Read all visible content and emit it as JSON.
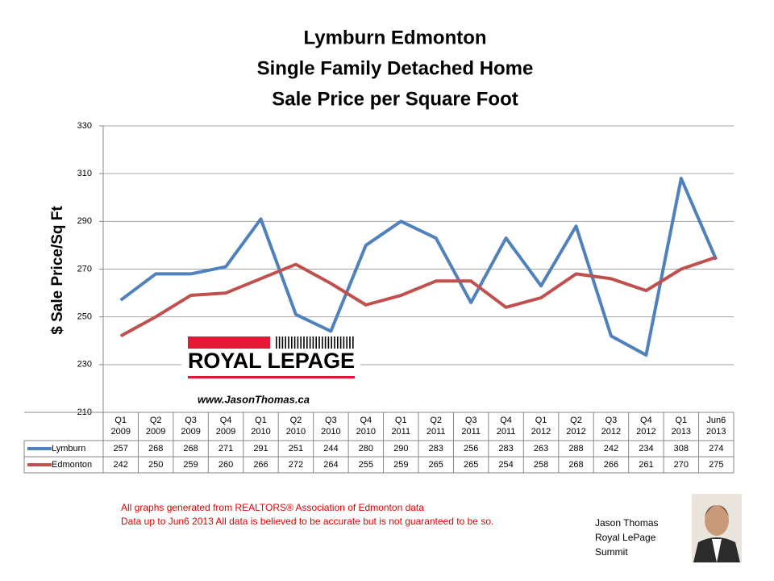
{
  "chart_data": {
    "type": "line",
    "title": [
      "Lymburn Edmonton",
      "Single Family Detached Home",
      "Sale Price per Square Foot"
    ],
    "y_label": "$ Sale Price/Sq Ft",
    "categories": [
      "Q1 2009",
      "Q2 2009",
      "Q3 2009",
      "Q4 2009",
      "Q1 2010",
      "Q2 2010",
      "Q3 2010",
      "Q4 2010",
      "Q1 2011",
      "Q2 2011",
      "Q3 2011",
      "Q4 2011",
      "Q1 2012",
      "Q2 2012",
      "Q3 2012",
      "Q4 2012",
      "Q1 2013",
      "Jun6 2013"
    ],
    "series": [
      {
        "name": "Lymburn",
        "color": "#4f81bd",
        "values": [
          257,
          268,
          268,
          271,
          291,
          251,
          244,
          280,
          290,
          283,
          256,
          283,
          263,
          288,
          242,
          234,
          308,
          274
        ]
      },
      {
        "name": "Edmonton",
        "color": "#c0504d",
        "values": [
          242,
          250,
          259,
          260,
          266,
          272,
          264,
          255,
          259,
          265,
          265,
          254,
          258,
          268,
          266,
          261,
          270,
          275
        ]
      }
    ],
    "ylim": [
      210,
      330
    ],
    "yticks": [
      210,
      230,
      250,
      270,
      290,
      310,
      330
    ],
    "grid": true
  },
  "logo": {
    "brand": "ROYAL LEPAGE",
    "website": "www.JasonThomas.ca"
  },
  "footnotes": [
    "All graphs generated from REALTORS® Association of Edmonton data",
    "Data up to  Jun6 2013  All data is believed to be accurate but is not guaranteed to be so."
  ],
  "signature": [
    "Jason Thomas",
    "Royal LePage",
    "Summit"
  ]
}
